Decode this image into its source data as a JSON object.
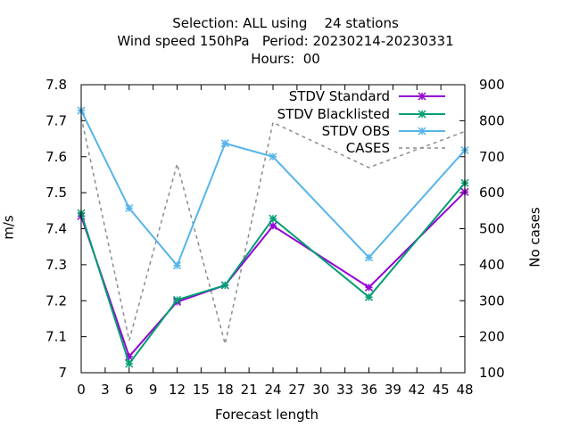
{
  "chart_data": {
    "type": "line",
    "title_lines": [
      "Selection: ALL using    24 stations",
      "Wind speed 150hPa   Period: 20230214-20230331",
      "Hours:  00"
    ],
    "xlabel": "Forecast length",
    "ylabel": "m/s",
    "y2label": "No cases",
    "xlim": [
      0,
      48
    ],
    "ylim": [
      7.0,
      7.8
    ],
    "y2lim": [
      100,
      900
    ],
    "x_ticks": [
      0,
      3,
      6,
      9,
      12,
      15,
      18,
      21,
      24,
      27,
      30,
      33,
      36,
      39,
      42,
      45,
      48
    ],
    "y_ticks": [
      7,
      7.1,
      7.2,
      7.3,
      7.4,
      7.5,
      7.6,
      7.7,
      7.8
    ],
    "y_tick_labels": [
      "7",
      "7.1",
      "7.2",
      "7.3",
      "7.4",
      "7.5",
      "7.6",
      "7.7",
      "7.8"
    ],
    "y2_ticks": [
      100,
      200,
      300,
      400,
      500,
      600,
      700,
      800,
      900
    ],
    "legend_position": "top-right",
    "grid": false,
    "x": [
      0,
      6,
      12,
      18,
      24,
      36,
      48
    ],
    "series": [
      {
        "name": "STDV Standard",
        "axis": "y",
        "color": "#9400d3",
        "dash": "none",
        "marker": "star",
        "values": [
          7.435,
          7.045,
          7.197,
          7.243,
          7.408,
          7.237,
          7.502
        ]
      },
      {
        "name": "STDV Blacklisted",
        "axis": "y",
        "color": "#009e73",
        "dash": "none",
        "marker": "star",
        "values": [
          7.443,
          7.025,
          7.202,
          7.243,
          7.428,
          7.21,
          7.527
        ]
      },
      {
        "name": "STDV OBS",
        "axis": "y",
        "color": "#56b4e9",
        "dash": "none",
        "marker": "star",
        "values": [
          7.728,
          7.457,
          7.298,
          7.637,
          7.6,
          7.32,
          7.618
        ]
      },
      {
        "name": "CASES",
        "axis": "y2",
        "color": "#8c8c8c",
        "dash": "4,4",
        "marker": "none",
        "values": [
          810,
          190,
          680,
          180,
          795,
          670,
          770
        ]
      }
    ]
  }
}
